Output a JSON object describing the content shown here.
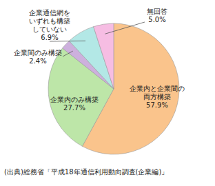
{
  "chart_data": {
    "type": "pie",
    "categories": [
      "企業内と企業間の両方構築",
      "企業内のみ構築",
      "企業間のみ構築",
      "企業通信網をいずれも構築していない",
      "無回答"
    ],
    "values": [
      57.9,
      27.7,
      2.4,
      6.9,
      5.0
    ],
    "value_labels": [
      "57.9%",
      "27.7%",
      "2.4%",
      "6.9%",
      "5.0%"
    ],
    "colors": [
      "#fac48c",
      "#bde6a8",
      "#cdb0dd",
      "#b3e8e6",
      "#f6bde3"
    ],
    "data_labels": true,
    "source": "(出典)総務省「平成18年通信利用動向調査(企業編)」"
  }
}
